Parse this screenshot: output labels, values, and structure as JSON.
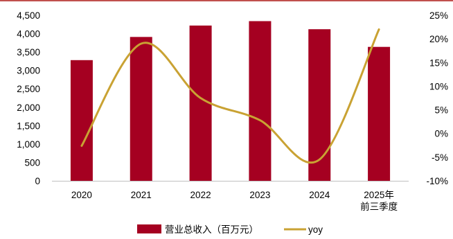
{
  "chart_data": {
    "type": "bar",
    "categories": [
      "2020",
      "2021",
      "2022",
      "2023",
      "2024",
      "2025年\n前三季度"
    ],
    "series": [
      {
        "name": "营业总收入（百万元）",
        "type": "bar",
        "axis": "left",
        "color": "#a50021",
        "values": [
          3280,
          3910,
          4220,
          4340,
          4120,
          3640
        ]
      },
      {
        "name": "yoy",
        "type": "line",
        "axis": "right",
        "smooth": true,
        "color": "#c9a233",
        "values": [
          -2.6,
          19.0,
          7.5,
          2.8,
          -5.5,
          22.0
        ]
      }
    ],
    "yaxis_left": {
      "min": 0,
      "max": 4500,
      "ticks": [
        0,
        500,
        1000,
        1500,
        2000,
        2500,
        3000,
        3500,
        4000,
        4500
      ],
      "tick_labels": [
        "0",
        "500",
        "1,000",
        "1,500",
        "2,000",
        "2,500",
        "3,000",
        "3,500",
        "4,000",
        "4,500"
      ]
    },
    "yaxis_right": {
      "min": -10,
      "max": 25,
      "ticks": [
        -10,
        -5,
        0,
        5,
        10,
        15,
        20,
        25
      ],
      "tick_labels": [
        "-10%",
        "-5%",
        "0%",
        "5%",
        "10%",
        "15%",
        "20%",
        "25%"
      ]
    },
    "title": "",
    "xlabel": "",
    "ylabel": "",
    "grid": false,
    "legend_position": "bottom",
    "top_rule_color": "#c0504d"
  }
}
